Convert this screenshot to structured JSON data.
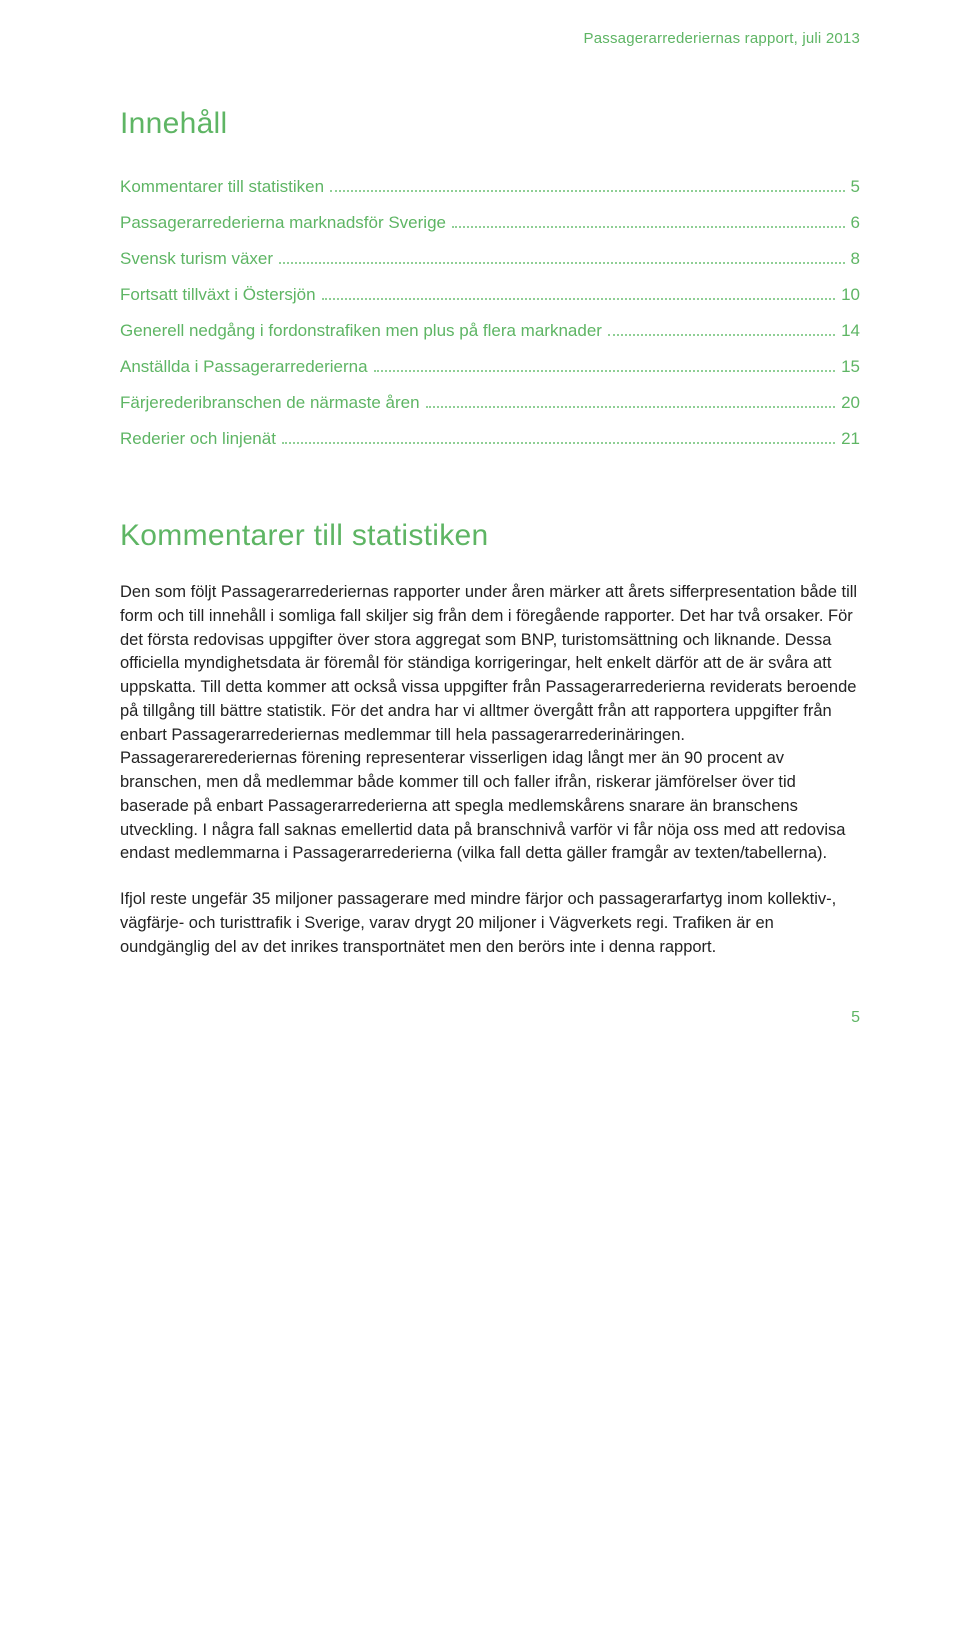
{
  "colors": {
    "accent": "#5eb564",
    "dot": "#8fcf95",
    "text": "#222222",
    "background": "#ffffff"
  },
  "typography": {
    "body_font": "Arial, Helvetica, sans-serif",
    "heading_fontsize_pt": 22,
    "body_fontsize_pt": 12,
    "toc_fontsize_pt": 13,
    "header_fontsize_pt": 11
  },
  "header": {
    "text": "Passagerarrederiernas rapport, juli 2013"
  },
  "toc": {
    "title": "Innehåll",
    "items": [
      {
        "label": "Kommentarer till statistiken",
        "page": "5"
      },
      {
        "label": "Passagerarrederierna marknadsför Sverige",
        "page": "6"
      },
      {
        "label": "Svensk turism växer",
        "page": "8"
      },
      {
        "label": "Fortsatt tillväxt i Östersjön",
        "page": "10"
      },
      {
        "label": "Generell nedgång i fordonstrafiken men plus på flera marknader",
        "page": "14"
      },
      {
        "label": "Anställda i Passagerarrederierna",
        "page": "15"
      },
      {
        "label": "Färjerederibranschen de närmaste åren",
        "page": "20"
      },
      {
        "label": "Rederier och linjenät",
        "page": "21"
      }
    ]
  },
  "section": {
    "title": "Kommentarer till statistiken",
    "paragraphs": [
      "Den som följt Passagerarrederiernas rapporter under åren märker att årets sifferpresentation både till form och till innehåll i somliga fall skiljer sig från dem i föregående rapporter. Det har två orsaker. För det första redovisas uppgifter över stora aggregat som BNP, turistomsättning och liknande. Dessa officiella myndighetsdata är föremål för ständiga korrigeringar, helt enkelt därför att de är svåra att uppskatta. Till detta kommer att också vissa uppgifter från Passagerarrederierna reviderats beroende på tillgång till bättre statistik. För det andra har vi alltmer övergått från att rapportera uppgifter från enbart Passagerarrederiernas medlemmar till hela passagerarrederinäringen. Passagerarerederiernas förening representerar visserligen idag långt mer än 90 procent av branschen, men då medlemmar både kommer till och faller ifrån, riskerar jämförelser över tid baserade på enbart Passagerarrederierna att spegla medlemskårens snarare än branschens utveckling. I några fall saknas emellertid data på branschnivå varför vi får nöja oss med att redovisa endast medlemmarna i Passagerarrederierna (vilka fall detta gäller framgår av texten/tabellerna).",
      "Ifjol reste ungefär 35 miljoner passagerare med mindre färjor och passagerarfartyg inom kollektiv-, vägfärje- och turisttrafik i Sverige, varav drygt 20 miljoner i Vägverkets regi. Trafiken är en oundgänglig del av det inrikes transportnätet men den berörs inte i denna rapport."
    ]
  },
  "page_number": "5"
}
